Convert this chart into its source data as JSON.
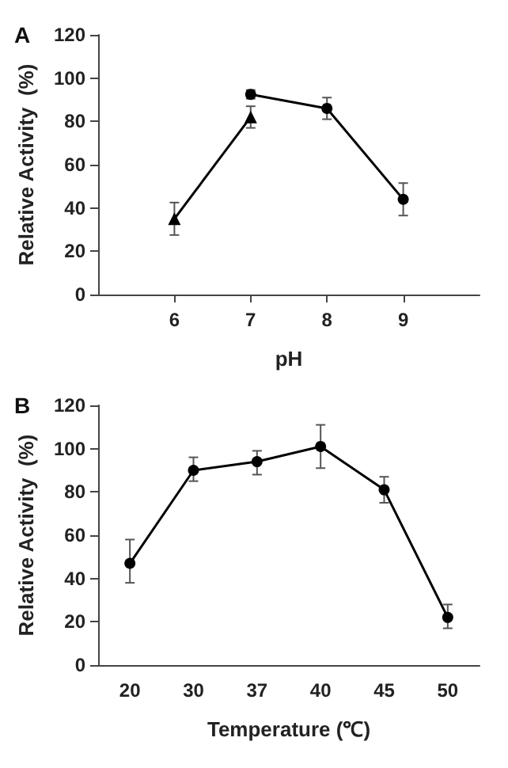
{
  "chart_data": [
    {
      "type": "line",
      "title": "A",
      "xlabel": "pH",
      "ylabel": "Relative Activity  (%)",
      "xlim": [
        5,
        10
      ],
      "xticks": [
        6,
        7,
        8,
        9
      ],
      "ylim": [
        0,
        120
      ],
      "yticks": [
        0,
        20,
        40,
        60,
        80,
        100,
        120
      ],
      "grid": false,
      "line_style": "solid",
      "series": [
        {
          "color": "#000000",
          "marker": "triangle",
          "x": [
            6,
            7
          ],
          "values": [
            35,
            82
          ],
          "errors": [
            7.5,
            5
          ]
        },
        {
          "color": "#000000",
          "marker": "circle",
          "x": [
            7,
            8,
            9
          ],
          "values": [
            92.5,
            86,
            44
          ],
          "errors": [
            2,
            5,
            7.5
          ]
        }
      ]
    },
    {
      "type": "line",
      "title": "B",
      "xlabel": "Temperature (℃)",
      "ylabel": "Relative Activity  (%)",
      "categories": [
        "20",
        "30",
        "37",
        "40",
        "45",
        "50"
      ],
      "ylim": [
        0,
        120
      ],
      "yticks": [
        0,
        20,
        40,
        60,
        80,
        100,
        120
      ],
      "grid": false,
      "line_style": "solid",
      "marker": "circle",
      "series": [
        {
          "color": "#000000",
          "values": [
            47,
            90,
            94,
            101,
            81,
            22
          ],
          "errors": [
            [
              38,
              58
            ],
            [
              85,
              96
            ],
            [
              88,
              99
            ],
            [
              91,
              111
            ],
            [
              75,
              87
            ],
            [
              17,
              28
            ]
          ]
        }
      ]
    }
  ]
}
